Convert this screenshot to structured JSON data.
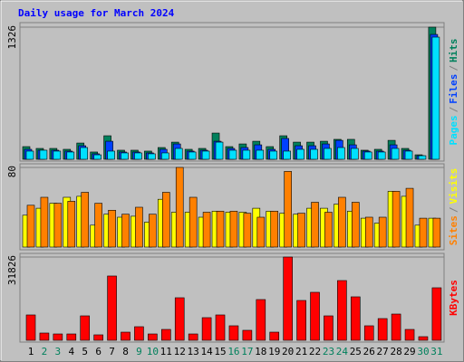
{
  "chart_data": [
    {
      "type": "bar",
      "title": "Daily usage for March 2024",
      "title_color": "#0000ff",
      "ylim": [
        0,
        1326
      ],
      "yticks": [
        1326
      ],
      "legend_separator": "/",
      "series": [
        {
          "name": "Hits",
          "color": "#00805c",
          "values": [
            127,
            109,
            109,
            100,
            163,
            73,
            236,
            91,
            91,
            82,
            118,
            172,
            100,
            109,
            263,
            127,
            154,
            181,
            127,
            236,
            172,
            172,
            181,
            200,
            200,
            91,
            100,
            190,
            109,
            45,
            1326
          ]
        },
        {
          "name": "Files",
          "color": "#0040ff",
          "values": [
            100,
            91,
            91,
            82,
            136,
            55,
            181,
            73,
            73,
            64,
            100,
            154,
            82,
            91,
            181,
            109,
            118,
            145,
            100,
            209,
            136,
            136,
            154,
            190,
            145,
            82,
            82,
            145,
            91,
            36,
            1253
          ]
        },
        {
          "name": "Pages",
          "color": "#00e0ff",
          "values": [
            82,
            91,
            82,
            73,
            118,
            45,
            82,
            64,
            64,
            55,
            64,
            109,
            73,
            82,
            172,
            91,
            91,
            91,
            82,
            82,
            100,
            100,
            109,
            118,
            109,
            73,
            73,
            109,
            82,
            36,
            1226
          ]
        }
      ]
    },
    {
      "type": "bar",
      "ylim": [
        0,
        80
      ],
      "yticks": [
        80
      ],
      "legend_separator": "/",
      "series": [
        {
          "name": "Visits",
          "color": "#ffff00",
          "values": [
            32,
            39,
            44,
            50,
            51,
            22,
            33,
            30,
            31,
            25,
            48,
            35,
            35,
            30,
            36,
            35,
            35,
            39,
            36,
            34,
            33,
            39,
            39,
            43,
            36,
            29,
            24,
            56,
            51,
            22,
            29
          ]
        },
        {
          "name": "Sites",
          "color": "#ff8000",
          "values": [
            42,
            50,
            44,
            46,
            55,
            44,
            37,
            33,
            40,
            33,
            55,
            80,
            50,
            35,
            36,
            36,
            34,
            30,
            36,
            76,
            34,
            45,
            35,
            50,
            45,
            30,
            30,
            56,
            59,
            29,
            29
          ]
        }
      ]
    },
    {
      "type": "bar",
      "ylim": [
        0,
        31826
      ],
      "yticks": [
        31826
      ],
      "categories": [
        "1",
        "2",
        "3",
        "4",
        "5",
        "6",
        "7",
        "8",
        "9",
        "10",
        "11",
        "12",
        "13",
        "14",
        "15",
        "16",
        "17",
        "18",
        "19",
        "20",
        "21",
        "22",
        "23",
        "24",
        "25",
        "26",
        "27",
        "28",
        "29",
        "30",
        "31"
      ],
      "weekend": [
        false,
        true,
        true,
        false,
        false,
        false,
        false,
        false,
        true,
        true,
        false,
        false,
        false,
        false,
        false,
        true,
        true,
        false,
        false,
        false,
        false,
        false,
        true,
        true,
        false,
        false,
        false,
        false,
        false,
        true,
        true
      ],
      "label_color": "#000000",
      "weekend_color": "#00805c",
      "series": [
        {
          "name": "KBytes",
          "color": "#ff0000",
          "values": [
            9690,
            2770,
            2420,
            2420,
            9340,
            2080,
            24570,
            3110,
            5190,
            2420,
            4150,
            16260,
            2420,
            8650,
            9690,
            5540,
            3810,
            15570,
            3110,
            31826,
            15220,
            18340,
            9340,
            22830,
            16610,
            5540,
            8300,
            10030,
            4150,
            1380,
            20070
          ]
        }
      ]
    }
  ]
}
